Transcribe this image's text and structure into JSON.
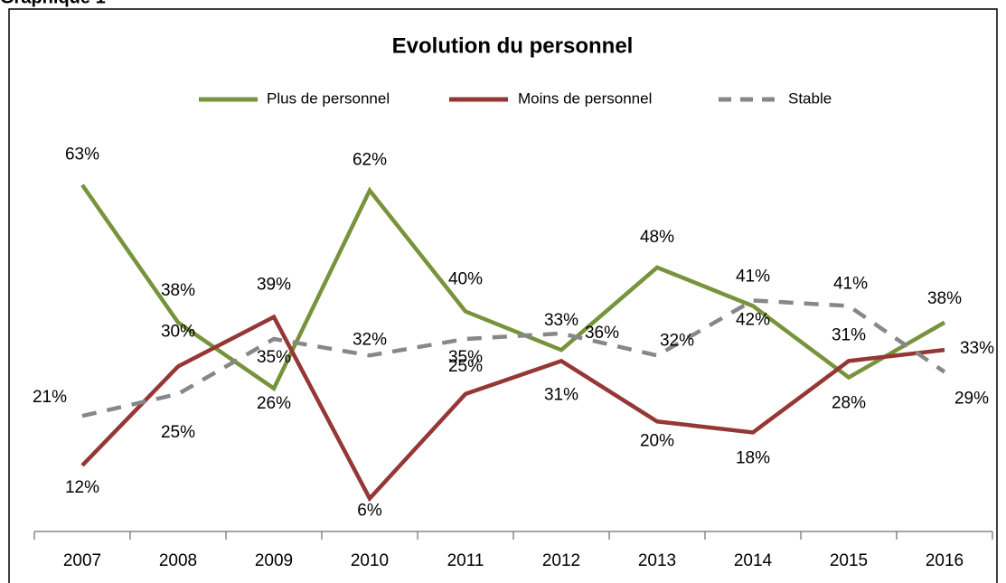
{
  "heading": "Graphique 1",
  "chart_data": {
    "type": "line",
    "title": "Evolution du personnel",
    "x": [
      "2007",
      "2008",
      "2009",
      "2010",
      "2011",
      "2012",
      "2013",
      "2014",
      "2015",
      "2016"
    ],
    "series": [
      {
        "name": "Plus de personnel",
        "color": "#77933c",
        "dash": false,
        "values": [
          63,
          38,
          26,
          62,
          40,
          33,
          48,
          41,
          28,
          38
        ],
        "value_labels": [
          "63%",
          "38%",
          "26%",
          "62%",
          "40%",
          "33%",
          "48%",
          "41%",
          "28%",
          "38%"
        ]
      },
      {
        "name": "Moins de personnel",
        "color": "#953735",
        "dash": false,
        "values": [
          12,
          30,
          39,
          6,
          25,
          31,
          20,
          18,
          31,
          33
        ],
        "value_labels": [
          "12%",
          "30%",
          "39%",
          "6%",
          "25%",
          "31%",
          "20%",
          "18%",
          "31%",
          "33%"
        ]
      },
      {
        "name": "Stable",
        "color": "#878787",
        "dash": true,
        "values": [
          21,
          25,
          35,
          32,
          35,
          36,
          32,
          42,
          41,
          29
        ],
        "value_labels": [
          "21%",
          "25%",
          "35%",
          "32%",
          "35%",
          "36%",
          "32%",
          "42%",
          "41%",
          "29%"
        ]
      }
    ],
    "ylim": [
      0,
      70
    ],
    "legend": "top"
  }
}
